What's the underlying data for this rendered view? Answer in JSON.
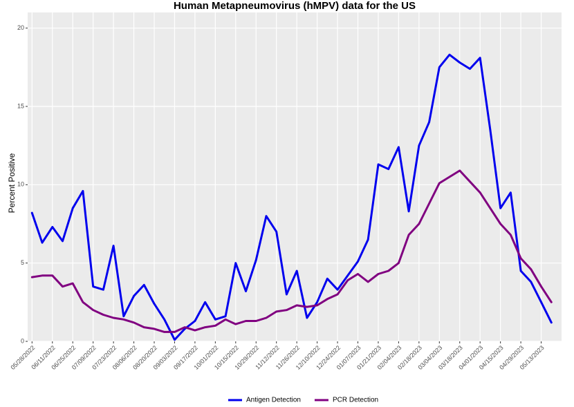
{
  "chart_data": {
    "type": "line",
    "title": "Human Metapneumovirus (hMPV) data for the US",
    "y_label": "Percent Positive",
    "x": [
      "05/28/2022",
      "06/04/2022",
      "06/11/2022",
      "06/18/2022",
      "06/25/2022",
      "07/02/2022",
      "07/09/2022",
      "07/16/2022",
      "07/23/2022",
      "07/30/2022",
      "08/06/2022",
      "08/13/2022",
      "08/20/2022",
      "08/27/2022",
      "09/03/2022",
      "09/10/2022",
      "09/17/2022",
      "09/24/2022",
      "10/01/2022",
      "10/08/2022",
      "10/15/2022",
      "10/22/2022",
      "10/29/2022",
      "11/05/2022",
      "11/12/2022",
      "11/19/2022",
      "11/26/2022",
      "12/03/2022",
      "12/10/2022",
      "12/17/2022",
      "12/24/2022",
      "12/31/2022",
      "01/07/2023",
      "01/14/2023",
      "01/21/2023",
      "01/28/2023",
      "02/04/2023",
      "02/11/2023",
      "02/18/2023",
      "02/25/2023",
      "03/04/2023",
      "03/11/2023",
      "03/18/2023",
      "03/25/2023",
      "04/01/2023",
      "04/08/2023",
      "04/15/2023",
      "04/22/2023",
      "04/29/2023",
      "05/06/2023",
      "05/13/2023",
      "05/20/2023"
    ],
    "series": [
      {
        "name": "Antigen Detection",
        "color": "#0000ee",
        "values": [
          8.2,
          6.3,
          7.3,
          6.4,
          8.5,
          9.6,
          3.5,
          3.3,
          6.1,
          1.6,
          2.9,
          3.6,
          2.4,
          1.4,
          0.1,
          0.8,
          1.3,
          2.5,
          1.4,
          1.6,
          5.0,
          3.2,
          5.2,
          8.0,
          7.0,
          3.0,
          4.5,
          1.5,
          2.5,
          4.0,
          3.3,
          4.2,
          5.1,
          6.5,
          11.3,
          11.0,
          12.4,
          8.3,
          12.5,
          14.0,
          17.5,
          18.3,
          17.8,
          17.4,
          18.1,
          13.5,
          8.5,
          9.5,
          4.5,
          3.8,
          2.5,
          1.2
        ]
      },
      {
        "name": "PCR Detection",
        "color": "#800080",
        "values": [
          4.1,
          4.2,
          4.2,
          3.5,
          3.7,
          2.5,
          2.0,
          1.7,
          1.5,
          1.4,
          1.2,
          0.9,
          0.8,
          0.6,
          0.6,
          0.9,
          0.7,
          0.9,
          1.0,
          1.4,
          1.1,
          1.3,
          1.3,
          1.5,
          1.9,
          2.0,
          2.3,
          2.2,
          2.3,
          2.7,
          3.0,
          3.9,
          4.3,
          3.8,
          4.3,
          4.5,
          5.0,
          6.8,
          7.5,
          8.8,
          10.1,
          10.5,
          10.9,
          10.2,
          9.5,
          8.5,
          7.5,
          6.8,
          5.3,
          4.6,
          3.5,
          2.5
        ]
      }
    ],
    "xlim": [
      "05/25/2022",
      "05/27/2023"
    ],
    "xticks": [
      "05/28/2022",
      "06/11/2022",
      "06/25/2022",
      "07/09/2022",
      "07/23/2022",
      "08/06/2022",
      "08/20/2022",
      "09/03/2022",
      "09/17/2022",
      "10/01/2022",
      "10/15/2022",
      "10/29/2022",
      "11/12/2022",
      "11/26/2022",
      "12/10/2022",
      "12/24/2022",
      "01/07/2023",
      "01/21/2023",
      "02/04/2023",
      "02/18/2023",
      "03/04/2023",
      "03/18/2023",
      "04/01/2023",
      "04/15/2023",
      "04/29/2023",
      "05/13/2023"
    ],
    "ylim": [
      0,
      21
    ],
    "yticks": [
      0,
      5,
      10,
      15,
      20
    ],
    "grid": true,
    "legend": "bottom"
  }
}
